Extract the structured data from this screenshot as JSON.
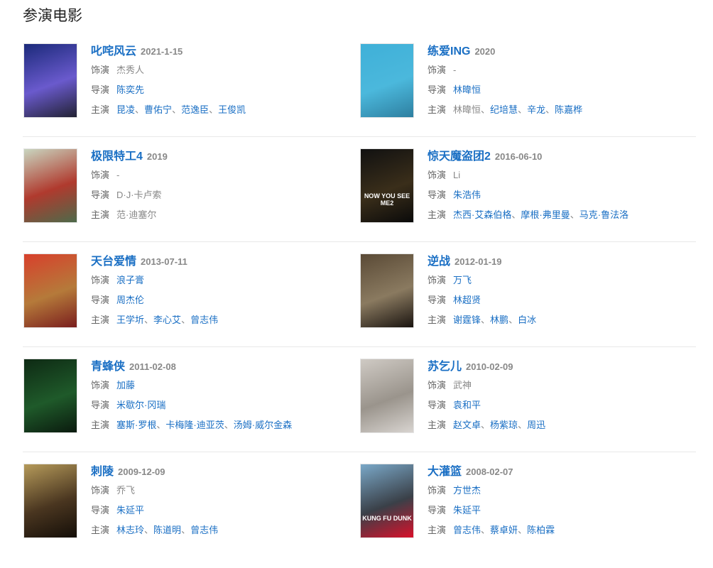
{
  "section_title": "参演电影",
  "labels": {
    "role": "饰演",
    "director": "导演",
    "cast": "主演"
  },
  "separator": "、",
  "movies": [
    {
      "name": "叱咤风云",
      "date": "2021-1-15",
      "poster_colors": [
        "#1b2a7a",
        "#6a5acd",
        "#223"
      ],
      "poster_text": "",
      "role": [
        {
          "n": "杰秀人",
          "link": false
        }
      ],
      "director": [
        {
          "n": "陈奕先",
          "link": true
        }
      ],
      "cast": [
        {
          "n": "昆凌",
          "link": true
        },
        {
          "n": "曹佑宁",
          "link": true
        },
        {
          "n": "范逸臣",
          "link": true
        },
        {
          "n": "王俊凯",
          "link": true
        }
      ]
    },
    {
      "name": "练爱ING",
      "date": "2020",
      "poster_colors": [
        "#3fb0d8",
        "#4bb8dc",
        "#2e7fa0"
      ],
      "poster_text": "",
      "role": [
        {
          "n": "-",
          "link": false
        }
      ],
      "director": [
        {
          "n": "林暐恒",
          "link": true
        }
      ],
      "cast": [
        {
          "n": "林暐恒",
          "link": false
        },
        {
          "n": "纪培慧",
          "link": true
        },
        {
          "n": "辛龙",
          "link": true
        },
        {
          "n": "陈嘉桦",
          "link": true
        }
      ]
    },
    {
      "name": "极限特工4",
      "date": "2019",
      "poster_colors": [
        "#c9d6c0",
        "#b03a2e",
        "#4d6a4a"
      ],
      "poster_text": "",
      "role": [
        {
          "n": "-",
          "link": false
        }
      ],
      "director": [
        {
          "n": "D·J·卡卢索",
          "link": false
        }
      ],
      "cast": [
        {
          "n": "范·迪塞尔",
          "link": false
        }
      ]
    },
    {
      "name": "惊天魔盗团2",
      "date": "2016-06-10",
      "poster_colors": [
        "#111",
        "#3a2e1a",
        "#0a0a0a"
      ],
      "poster_text": "NOW YOU SEE ME2",
      "role": [
        {
          "n": "Li",
          "link": false
        }
      ],
      "director": [
        {
          "n": "朱浩伟",
          "link": true
        }
      ],
      "cast": [
        {
          "n": "杰西·艾森伯格",
          "link": true
        },
        {
          "n": "摩根·弗里曼",
          "link": true
        },
        {
          "n": "马克·鲁法洛",
          "link": true
        }
      ]
    },
    {
      "name": "天台爱情",
      "date": "2013-07-11",
      "poster_colors": [
        "#d8402c",
        "#b57a3a",
        "#7a1e1e"
      ],
      "poster_text": "",
      "role": [
        {
          "n": "浪子膏",
          "link": true
        }
      ],
      "director": [
        {
          "n": "周杰伦",
          "link": true
        }
      ],
      "cast": [
        {
          "n": "王学圻",
          "link": true
        },
        {
          "n": "李心艾",
          "link": true
        },
        {
          "n": "曾志伟",
          "link": true
        }
      ]
    },
    {
      "name": "逆战",
      "date": "2012-01-19",
      "poster_colors": [
        "#5a4a36",
        "#8a7a60",
        "#1a1410"
      ],
      "poster_text": "",
      "role": [
        {
          "n": "万飞",
          "link": true
        }
      ],
      "director": [
        {
          "n": "林超贤",
          "link": true
        }
      ],
      "cast": [
        {
          "n": "谢霆锋",
          "link": true
        },
        {
          "n": "林鹏",
          "link": true
        },
        {
          "n": "白冰",
          "link": true
        }
      ]
    },
    {
      "name": "青蜂侠",
      "date": "2011-02-08",
      "poster_colors": [
        "#0e2a14",
        "#1f5a2a",
        "#0a1a0e"
      ],
      "poster_text": "",
      "role": [
        {
          "n": "加藤",
          "link": true
        }
      ],
      "director": [
        {
          "n": "米歇尔·冈瑞",
          "link": true
        }
      ],
      "cast": [
        {
          "n": "塞斯·罗根",
          "link": true
        },
        {
          "n": "卡梅隆·迪亚茨",
          "link": true
        },
        {
          "n": "汤姆·威尔金森",
          "link": true
        }
      ]
    },
    {
      "name": "苏乞儿",
      "date": "2010-02-09",
      "poster_colors": [
        "#cfcac4",
        "#9a948c",
        "#d8d4d0"
      ],
      "poster_text": "",
      "role": [
        {
          "n": "武神",
          "link": false
        }
      ],
      "director": [
        {
          "n": "袁和平",
          "link": true
        }
      ],
      "cast": [
        {
          "n": "赵文卓",
          "link": true
        },
        {
          "n": "杨紫琼",
          "link": true
        },
        {
          "n": "周迅",
          "link": true
        }
      ]
    },
    {
      "name": "刺陵",
      "date": "2009-12-09",
      "poster_colors": [
        "#b59a5a",
        "#4a3620",
        "#140e08"
      ],
      "poster_text": "",
      "role": [
        {
          "n": "乔飞",
          "link": false
        }
      ],
      "director": [
        {
          "n": "朱延平",
          "link": true
        }
      ],
      "cast": [
        {
          "n": "林志玲",
          "link": true
        },
        {
          "n": "陈道明",
          "link": true
        },
        {
          "n": "曾志伟",
          "link": true
        }
      ]
    },
    {
      "name": "大灌篮",
      "date": "2008-02-07",
      "poster_colors": [
        "#7aa8c8",
        "#3a4048",
        "#d8102a"
      ],
      "poster_text": "KUNG FU DUNK",
      "role": [
        {
          "n": "方世杰",
          "link": true
        }
      ],
      "director": [
        {
          "n": "朱延平",
          "link": true
        }
      ],
      "cast": [
        {
          "n": "曾志伟",
          "link": true
        },
        {
          "n": "蔡卓妍",
          "link": true
        },
        {
          "n": "陈柏霖",
          "link": true
        }
      ]
    }
  ]
}
